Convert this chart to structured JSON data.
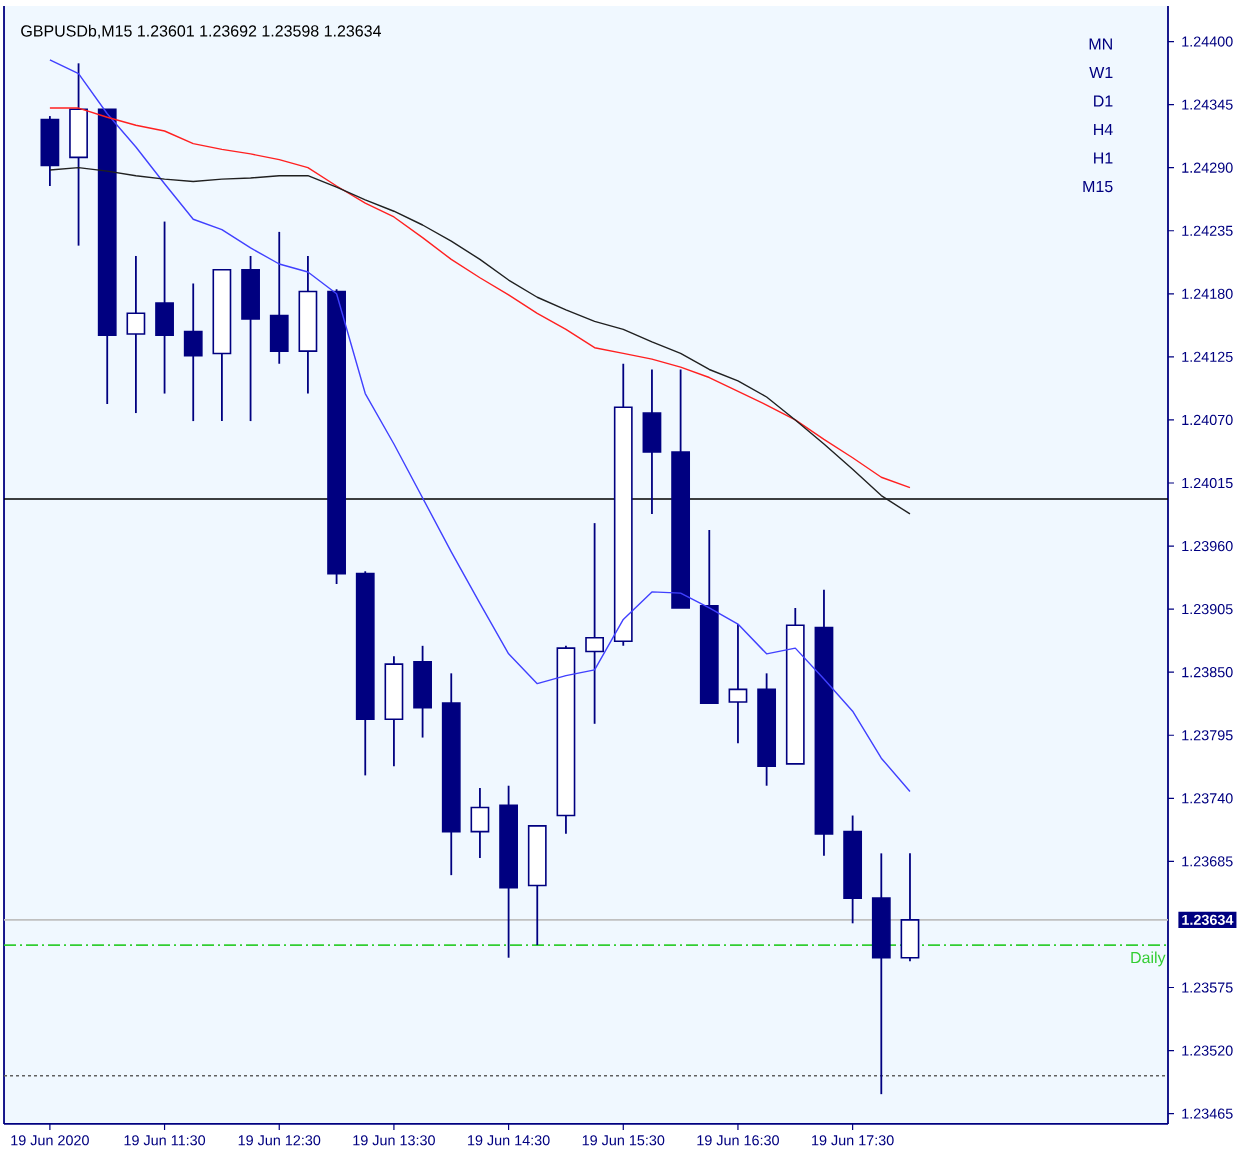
{
  "chart_data": {
    "type": "candlestick",
    "title": "GBPUSDb,M15  1.23601 1.23692 1.23598 1.23634",
    "color": "#000080",
    "categories": [
      "19 Jun 2020",
      null,
      null,
      null,
      "19 Jun 11:30",
      null,
      null,
      null,
      "19 Jun 12:30",
      null,
      null,
      null,
      "19 Jun 13:30",
      null,
      null,
      null,
      "19 Jun 14:30",
      null,
      null,
      null,
      "19 Jun 15:30",
      null,
      null,
      null,
      "19 Jun 16:30",
      null,
      null,
      null,
      "19 Jun 17:30",
      null,
      null
    ],
    "ohlc": [
      [
        1.24332,
        1.24335,
        1.24274,
        1.24292
      ],
      [
        1.24299,
        1.24381,
        1.24222,
        1.24341
      ],
      [
        1.24341,
        1.24341,
        1.24084,
        1.24144
      ],
      [
        1.24145,
        1.24213,
        1.24076,
        1.24163
      ],
      [
        1.24172,
        1.24243,
        1.24093,
        1.24144
      ],
      [
        1.24147,
        1.24189,
        1.24069,
        1.24126
      ],
      [
        1.24128,
        1.24201,
        1.24069,
        1.24201
      ],
      [
        1.24201,
        1.24213,
        1.24069,
        1.24158
      ],
      [
        1.24161,
        1.24234,
        1.24119,
        1.2413
      ],
      [
        1.2413,
        1.24213,
        1.24093,
        1.24182
      ],
      [
        1.24182,
        1.24184,
        1.23927,
        1.23936
      ],
      [
        1.23936,
        1.23938,
        1.2376,
        1.23809
      ],
      [
        1.23809,
        1.23864,
        1.23768,
        1.23857
      ],
      [
        1.23859,
        1.23873,
        1.23793,
        1.23819
      ],
      [
        1.23823,
        1.23849,
        1.23673,
        1.23711
      ],
      [
        1.23711,
        1.23749,
        1.23688,
        1.23732
      ],
      [
        1.23734,
        1.23751,
        1.23601,
        1.23662
      ],
      [
        1.23664,
        1.23716,
        1.23612,
        1.23716
      ],
      [
        1.23725,
        1.23873,
        1.23709,
        1.23871
      ],
      [
        1.23868,
        1.2398,
        1.23805,
        1.2388
      ],
      [
        1.23877,
        1.24119,
        1.23873,
        1.24081
      ],
      [
        1.24076,
        1.24114,
        1.23988,
        1.24042
      ],
      [
        1.24042,
        1.24114,
        1.23906,
        1.23906
      ],
      [
        1.23908,
        1.23974,
        1.23823,
        1.23823
      ],
      [
        1.23824,
        1.23892,
        1.23788,
        1.23835
      ],
      [
        1.23835,
        1.23849,
        1.23751,
        1.23768
      ],
      [
        1.2377,
        1.23906,
        1.2377,
        1.23891
      ],
      [
        1.23889,
        1.23922,
        1.2369,
        1.23709
      ],
      [
        1.23711,
        1.23725,
        1.23631,
        1.23653
      ],
      [
        1.23653,
        1.23692,
        1.23482,
        1.23601
      ],
      [
        1.23601,
        1.23692,
        1.23598,
        1.23634
      ]
    ],
    "series": [
      {
        "type": "line",
        "color": "#4040ff",
        "values": [
          1.24384,
          1.24372,
          1.24337,
          1.24308,
          1.24276,
          1.24245,
          1.24236,
          1.2422,
          1.24206,
          1.24199,
          1.2418,
          1.24093,
          1.24049,
          1.24002,
          1.23955,
          1.2391,
          1.23866,
          1.2384,
          1.23847,
          1.23852,
          1.23896,
          1.2392,
          1.23919,
          1.23906,
          1.23892,
          1.23866,
          1.23871,
          1.23844,
          1.23816,
          1.23775,
          1.23746
        ]
      },
      {
        "type": "line",
        "color": "#ff2020",
        "values": [
          1.24342,
          1.24342,
          1.24334,
          1.24327,
          1.24322,
          1.24311,
          1.24306,
          1.24302,
          1.24297,
          1.2429,
          1.24274,
          1.24259,
          1.24247,
          1.24229,
          1.2421,
          1.24194,
          1.24179,
          1.24163,
          1.24149,
          1.24133,
          1.24128,
          1.24123,
          1.24116,
          1.24107,
          1.24095,
          1.24083,
          1.2407,
          1.24053,
          1.24037,
          1.2402,
          1.24011
        ]
      },
      {
        "type": "line",
        "color": "#202020",
        "values": [
          1.24288,
          1.2429,
          1.24287,
          1.24283,
          1.2428,
          1.24278,
          1.2428,
          1.24281,
          1.24283,
          1.24283,
          1.24273,
          1.24262,
          1.24252,
          1.2424,
          1.24226,
          1.2421,
          1.24192,
          1.24177,
          1.24166,
          1.24156,
          1.24149,
          1.24138,
          1.24128,
          1.24114,
          1.24104,
          1.2409,
          1.2407,
          1.24049,
          1.24027,
          1.24004,
          1.23988
        ]
      }
    ],
    "ref_lines": [
      {
        "axis": "y",
        "value": 1.24001,
        "color": "#000000",
        "line_style": "solid"
      },
      {
        "axis": "y",
        "value": 1.23634,
        "label": "1.23634",
        "color": "#c0c0c0",
        "line_style": "solid"
      },
      {
        "axis": "y",
        "value": 1.23612,
        "label": "Daily",
        "color": "#32cd32",
        "line_style": "dashed"
      },
      {
        "axis": "y",
        "value": 1.23498,
        "color": "#606060",
        "line_style": "dotted"
      }
    ],
    "annotations": [
      "MN",
      "W1",
      "D1",
      "H4",
      "H1",
      "M15"
    ],
    "ylim": [
      1.23456,
      1.24431
    ],
    "yticks": [
      1.23465,
      {
        "value": 1.2352,
        "label": "1.23520"
      },
      1.23575,
      1.23685,
      {
        "value": 1.2374,
        "label": "1.23740"
      },
      1.23795,
      {
        "value": 1.2385,
        "label": "1.23850"
      },
      1.23905,
      {
        "value": 1.2396,
        "label": "1.23960"
      },
      1.24015,
      {
        "value": 1.2407,
        "label": "1.24070"
      },
      1.24125,
      {
        "value": 1.2418,
        "label": "1.24180"
      },
      1.24235,
      {
        "value": 1.2429,
        "label": "1.24290"
      },
      1.24345,
      {
        "value": 1.244,
        "label": "1.24400"
      }
    ]
  }
}
